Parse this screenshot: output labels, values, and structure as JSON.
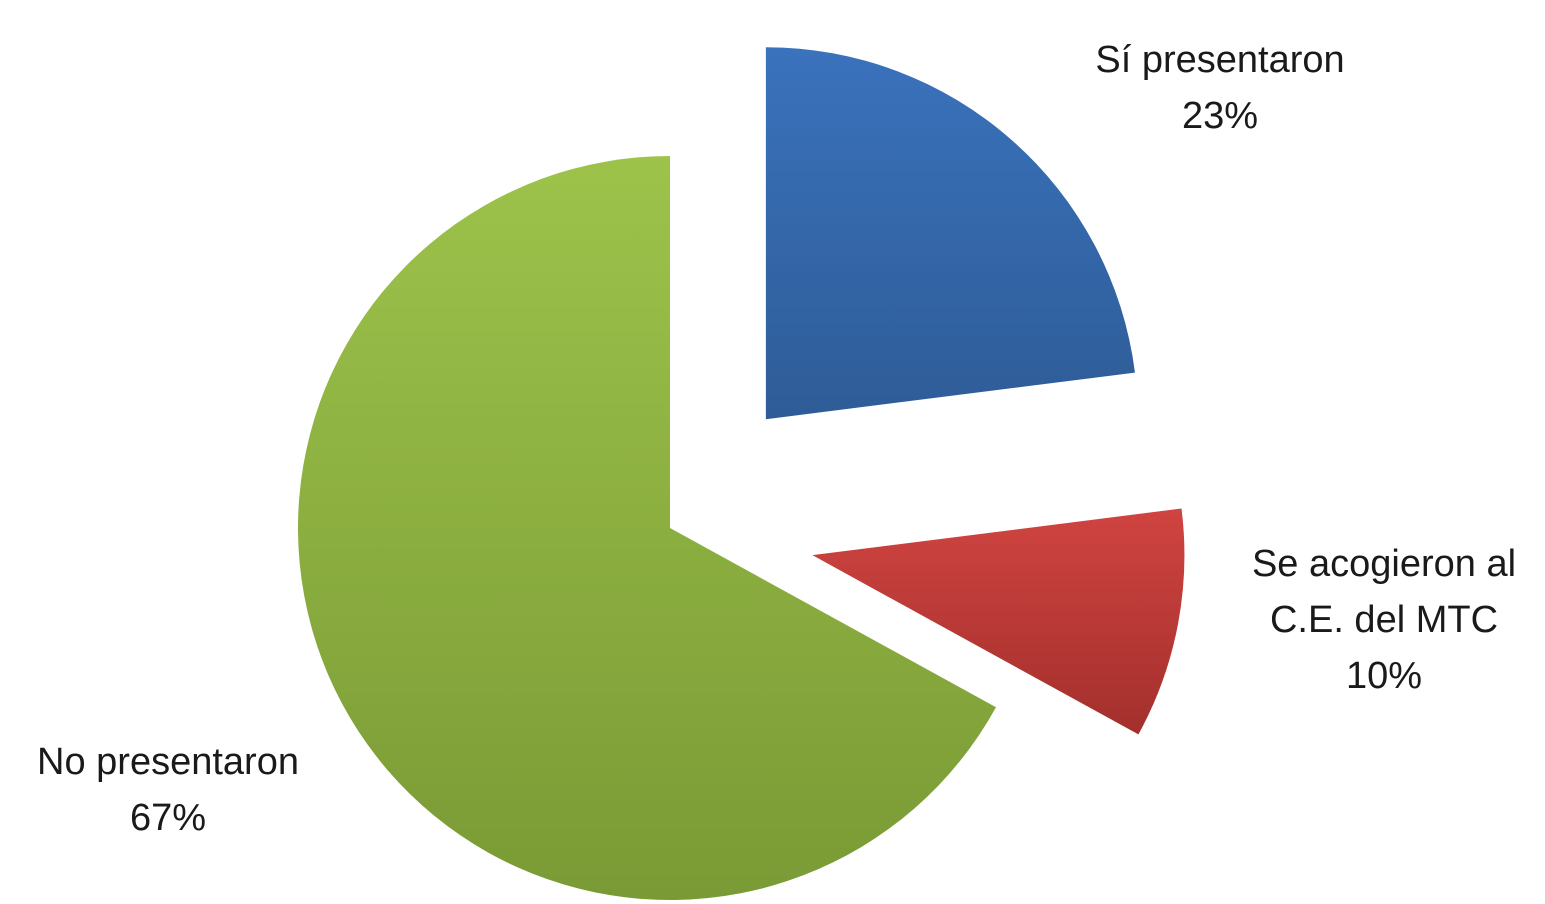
{
  "chart_data": {
    "type": "pie",
    "exploded": true,
    "start_angle_deg": 0,
    "direction": "clockwise",
    "categories": [
      "Sí presentaron",
      "Se acogieron al C.E. del MTC",
      "No presentaron"
    ],
    "values": [
      23,
      10,
      67
    ],
    "value_unit": "%",
    "slices": [
      {
        "name": "Sí presentaron",
        "value": 23,
        "label_lines": [
          "Sí presentaron",
          "23%"
        ],
        "color": "#3a72bc",
        "color_dark": "#2e5c97",
        "exploded": true
      },
      {
        "name": "Se acogieron al C.E. del MTC",
        "value": 10,
        "label_lines": [
          "Se acogieron al",
          "C.E. del MTC",
          "10%"
        ],
        "color": "#d04441",
        "color_dark": "#a32f2c",
        "exploded": true
      },
      {
        "name": "No presentaron",
        "value": 67,
        "label_lines": [
          "No presentaron",
          "67%"
        ],
        "color": "#9dc34b",
        "color_dark": "#7a9a35",
        "exploded": false
      }
    ],
    "title": "",
    "legend": "none"
  }
}
